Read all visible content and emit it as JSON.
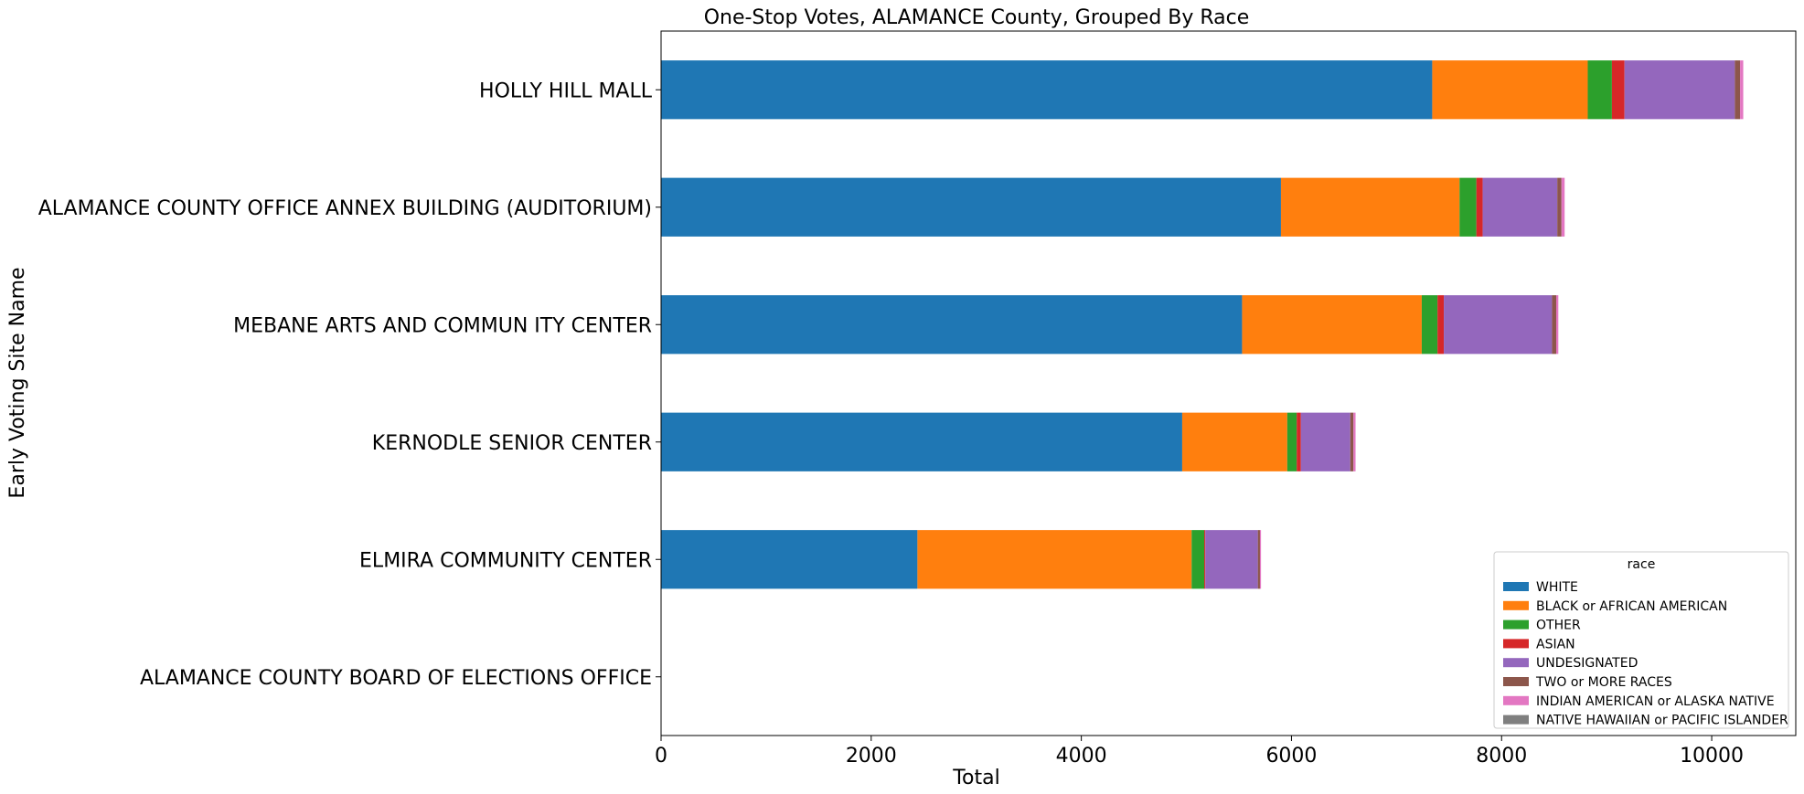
{
  "chart_data": {
    "type": "bar",
    "orientation": "horizontal",
    "stacked": true,
    "title": "One-Stop Votes, ALAMANCE County, Grouped By Race",
    "xlabel": "Total",
    "ylabel": "Early Voting Site Name",
    "xlim": [
      0,
      10800
    ],
    "xticks": [
      "0",
      "2000",
      "4000",
      "6000",
      "8000",
      "10000"
    ],
    "grid": false,
    "legend_title": "race",
    "legend_position": "lower-right",
    "categories": [
      "HOLLY HILL MALL",
      "ALAMANCE COUNTY OFFICE ANNEX BUILDING (AUDITORIUM)",
      "MEBANE ARTS AND COMMUN ITY CENTER",
      "KERNODLE SENIOR CENTER",
      "ELMIRA COMMUNITY CENTER",
      "ALAMANCE COUNTY BOARD OF ELECTIONS OFFICE"
    ],
    "series": [
      {
        "name": "WHITE",
        "color": "#1f77b4",
        "values": [
          7340,
          5900,
          5530,
          4960,
          2440,
          0
        ]
      },
      {
        "name": "BLACK or AFRICAN AMERICAN",
        "color": "#ff7f0e",
        "values": [
          1480,
          1700,
          1710,
          1000,
          2610,
          0
        ]
      },
      {
        "name": "OTHER",
        "color": "#2ca02c",
        "values": [
          230,
          160,
          150,
          90,
          120,
          0
        ]
      },
      {
        "name": "ASIAN",
        "color": "#d62728",
        "values": [
          120,
          60,
          60,
          40,
          10,
          0
        ]
      },
      {
        "name": "UNDESIGNATED",
        "color": "#9467bd",
        "values": [
          1050,
          710,
          1030,
          470,
          500,
          0
        ]
      },
      {
        "name": "TWO or MORE RACES",
        "color": "#8c564b",
        "values": [
          50,
          40,
          40,
          30,
          20,
          0
        ]
      },
      {
        "name": "INDIAN AMERICAN or ALASKA NATIVE",
        "color": "#e377c2",
        "values": [
          30,
          30,
          20,
          20,
          10,
          0
        ]
      },
      {
        "name": "NATIVE HAWAIIAN or PACIFIC ISLANDER",
        "color": "#7f7f7f",
        "values": [
          0,
          0,
          0,
          0,
          0,
          0
        ]
      }
    ]
  }
}
